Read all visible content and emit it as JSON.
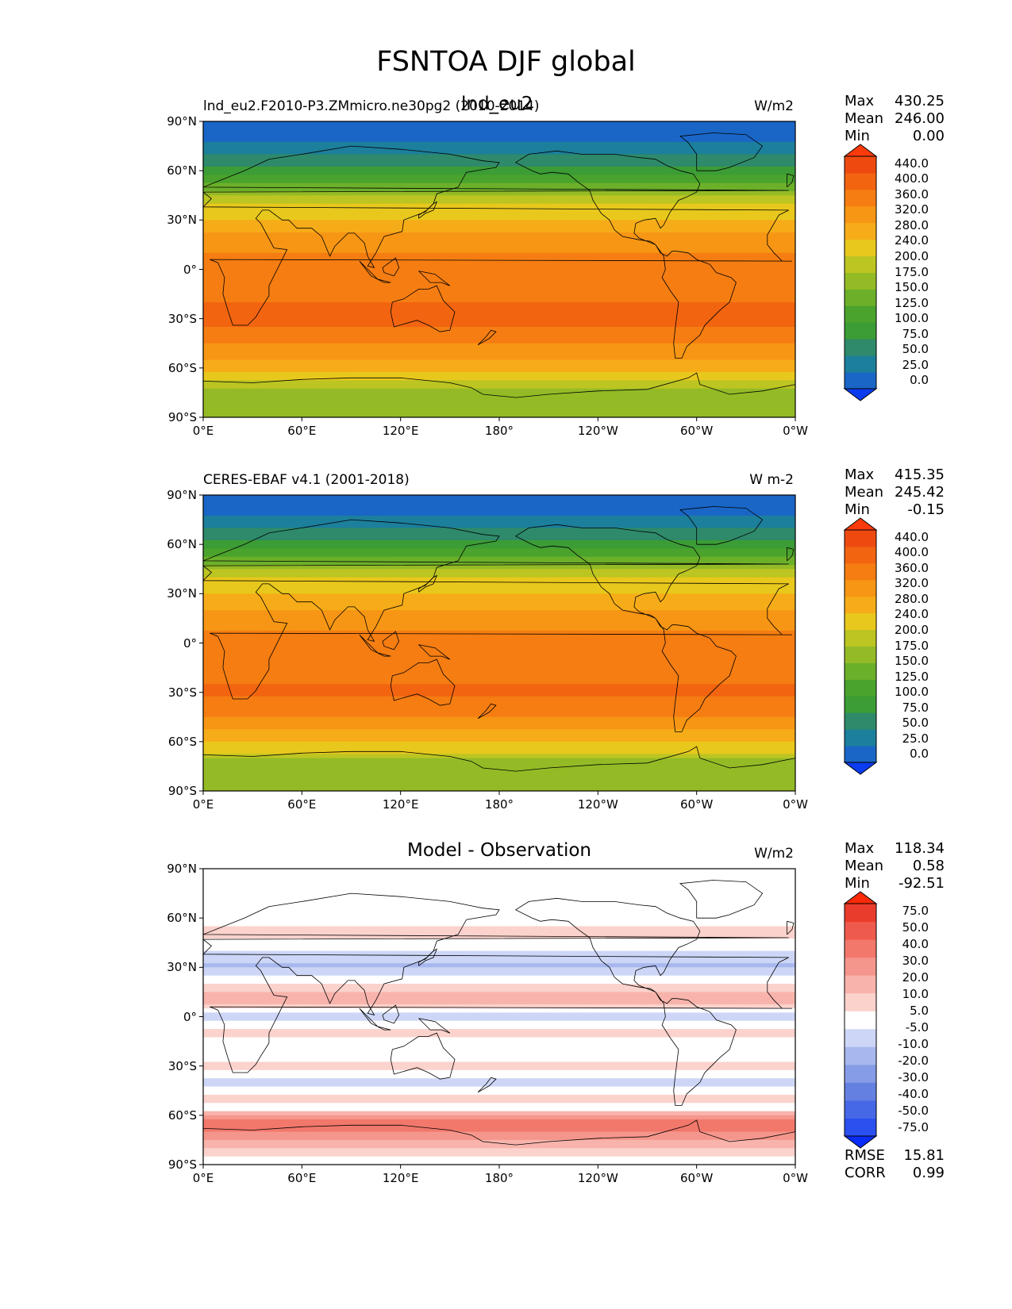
{
  "suptitle": "FSNTOA DJF global",
  "panels": [
    {
      "title_left": "lnd_eu2.F2010-P3.ZMmicro.ne30pg2 (2010-2014)",
      "title_overlay": "lnd_eu2",
      "title_center": "",
      "units": "W/m2",
      "stats": [
        {
          "label": "Max",
          "value": "430.25"
        },
        {
          "label": "Mean",
          "value": "246.00"
        },
        {
          "label": "Min",
          "value": "0.00"
        }
      ]
    },
    {
      "title_left": "CERES-EBAF v4.1 (2001-2018)",
      "title_overlay": "",
      "title_center": "",
      "units": "W m-2",
      "stats": [
        {
          "label": "Max",
          "value": "415.35"
        },
        {
          "label": "Mean",
          "value": "245.42"
        },
        {
          "label": "Min",
          "value": "-0.15"
        }
      ]
    },
    {
      "title_left": "",
      "title_overlay": "",
      "title_center": "Model - Observation",
      "units": "W/m2",
      "stats": [
        {
          "label": "Max",
          "value": "118.34"
        },
        {
          "label": "Mean",
          "value": "0.58"
        },
        {
          "label": "Min",
          "value": "-92.51"
        }
      ],
      "extra_stats": [
        {
          "label": "RMSE",
          "value": "15.81"
        },
        {
          "label": "CORR",
          "value": "0.99"
        }
      ]
    }
  ],
  "chart_data": [
    {
      "type": "heatmap",
      "title": "lnd_eu2.F2010-P3.ZMmicro.ne30pg2 (2010-2014)",
      "units": "W/m2",
      "x_ticks": [
        "0°E",
        "60°E",
        "120°E",
        "180°",
        "120°W",
        "60°W",
        "0°W"
      ],
      "y_ticks": [
        "90°N",
        "60°N",
        "30°N",
        "0°",
        "30°S",
        "60°S",
        "90°S"
      ],
      "xlim": [
        0,
        360
      ],
      "ylim": [
        -90,
        90
      ],
      "zonal_profile": {
        "lat": [
          90,
          85,
          80,
          70,
          60,
          50,
          40,
          30,
          20,
          10,
          0,
          -10,
          -20,
          -30,
          -40,
          -50,
          -60,
          -65,
          -70,
          -75,
          -80,
          -85,
          -90
        ],
        "value": [
          0,
          5,
          20,
          45,
          90,
          140,
          200,
          245,
          290,
          320,
          335,
          345,
          360,
          370,
          350,
          300,
          250,
          215,
          180,
          160,
          150,
          150,
          150
        ]
      },
      "colorbar": {
        "levels": [
          "0.0",
          "25.0",
          "50.0",
          "75.0",
          "100.0",
          "125.0",
          "150.0",
          "175.0",
          "200.0",
          "240.0",
          "280.0",
          "320.0",
          "360.0",
          "400.0",
          "440.0"
        ],
        "colors": [
          "#0c3cf0",
          "#1a66c6",
          "#1c7f9c",
          "#2e8a6a",
          "#3c9c36",
          "#4aa32c",
          "#6cb02a",
          "#94bb26",
          "#bcc522",
          "#e8c81c",
          "#f6ac18",
          "#f79614",
          "#f57d12",
          "#f26410",
          "#ee4a10",
          "#fb3a0c"
        ]
      }
    },
    {
      "type": "heatmap",
      "title": "CERES-EBAF v4.1 (2001-2018)",
      "units": "W m-2",
      "x_ticks": [
        "0°E",
        "60°E",
        "120°E",
        "180°",
        "120°W",
        "60°W",
        "0°W"
      ],
      "y_ticks": [
        "90°N",
        "60°N",
        "30°N",
        "0°",
        "30°S",
        "60°S",
        "90°S"
      ],
      "xlim": [
        0,
        360
      ],
      "ylim": [
        -90,
        90
      ],
      "zonal_profile": {
        "lat": [
          90,
          85,
          80,
          70,
          60,
          50,
          40,
          30,
          20,
          10,
          0,
          -10,
          -20,
          -30,
          -40,
          -50,
          -60,
          -65,
          -70,
          -75,
          -80,
          -85,
          -90
        ],
        "value": [
          0,
          5,
          20,
          45,
          88,
          138,
          198,
          240,
          285,
          315,
          330,
          340,
          355,
          365,
          345,
          295,
          245,
          210,
          175,
          158,
          150,
          150,
          150
        ]
      },
      "colorbar": {
        "levels": [
          "0.0",
          "25.0",
          "50.0",
          "75.0",
          "100.0",
          "125.0",
          "150.0",
          "175.0",
          "200.0",
          "240.0",
          "280.0",
          "320.0",
          "360.0",
          "400.0",
          "440.0"
        ],
        "colors": [
          "#0c3cf0",
          "#1a66c6",
          "#1c7f9c",
          "#2e8a6a",
          "#3c9c36",
          "#4aa32c",
          "#6cb02a",
          "#94bb26",
          "#bcc522",
          "#e8c81c",
          "#f6ac18",
          "#f79614",
          "#f57d12",
          "#f26410",
          "#ee4a10",
          "#fb3a0c"
        ]
      }
    },
    {
      "type": "heatmap",
      "title": "Model - Observation",
      "units": "W/m2",
      "x_ticks": [
        "0°E",
        "60°E",
        "120°E",
        "180°",
        "120°W",
        "60°W",
        "0°W"
      ],
      "y_ticks": [
        "90°N",
        "60°N",
        "30°N",
        "0°",
        "30°S",
        "60°S",
        "90°S"
      ],
      "xlim": [
        0,
        360
      ],
      "ylim": [
        -90,
        90
      ],
      "zonal_profile": {
        "lat": [
          90,
          70,
          60,
          50,
          40,
          30,
          20,
          10,
          5,
          0,
          -10,
          -20,
          -30,
          -40,
          -50,
          -55,
          -60,
          -65,
          -70,
          -80,
          -90
        ],
        "value": [
          0,
          0,
          3,
          8,
          -6,
          -12,
          4,
          16,
          6,
          -12,
          10,
          -6,
          8,
          -12,
          12,
          -8,
          22,
          40,
          30,
          8,
          0
        ]
      },
      "colorbar": {
        "levels": [
          "-75.0",
          "-50.0",
          "-40.0",
          "-30.0",
          "-20.0",
          "-10.0",
          "-5.0",
          "5.0",
          "10.0",
          "20.0",
          "30.0",
          "40.0",
          "50.0",
          "75.0"
        ],
        "colors": [
          "#0a2cf8",
          "#2a50f0",
          "#4668e6",
          "#6480e0",
          "#869ce6",
          "#a8b8ee",
          "#cdd6f6",
          "#ffffff",
          "#fbd2cc",
          "#f8b4ac",
          "#f5968c",
          "#f2786c",
          "#ee5a4c",
          "#ea3c2c",
          "#fb2a08"
        ]
      }
    }
  ]
}
